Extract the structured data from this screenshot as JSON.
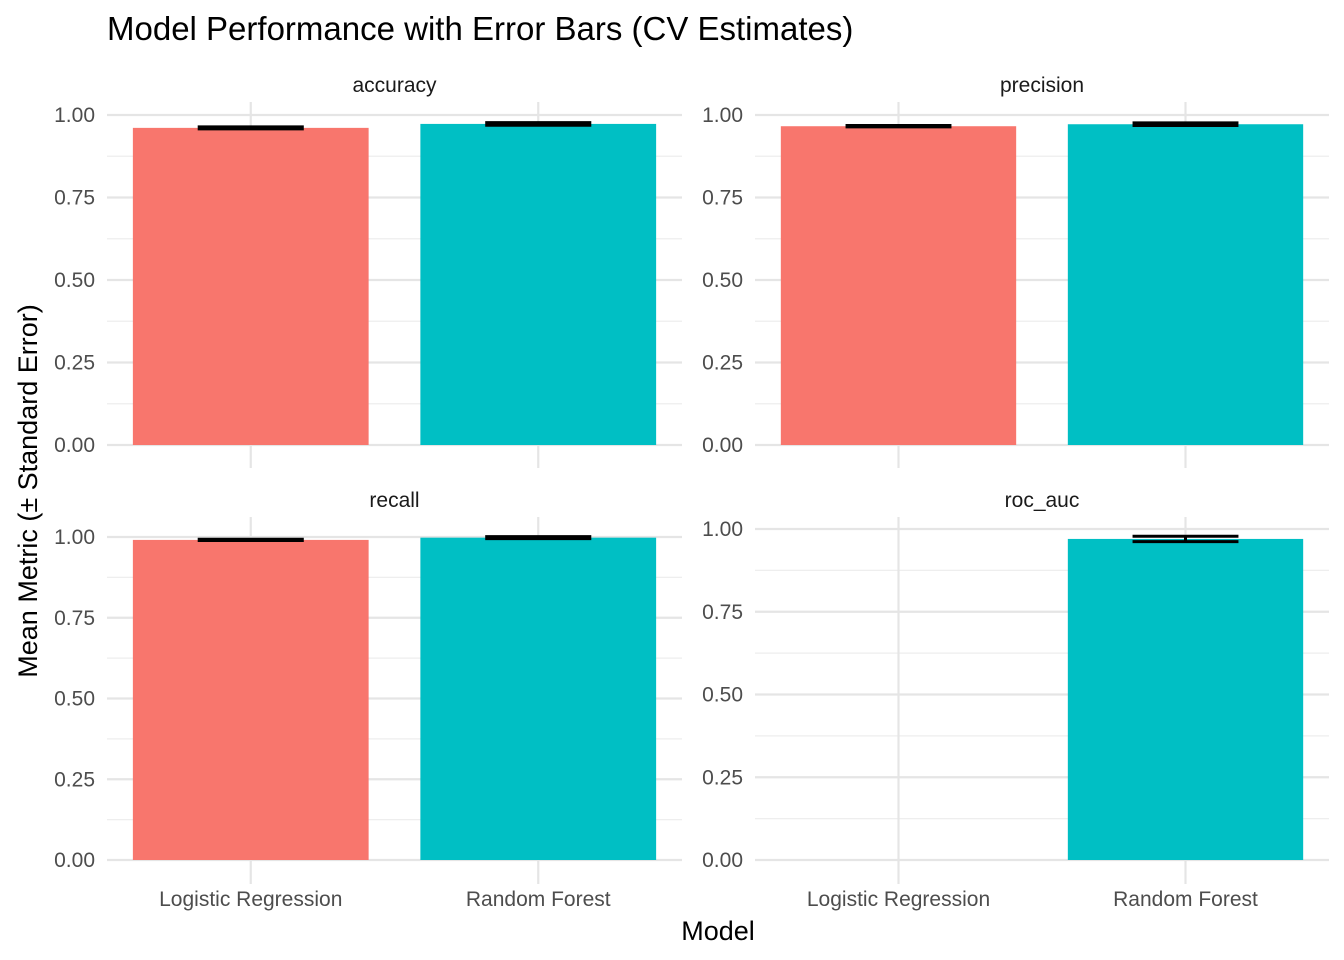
{
  "chart_data": {
    "type": "bar",
    "title": "Model Performance with Error Bars (CV Estimates)",
    "xlabel": "Model",
    "ylabel": "Mean Metric (± Standard Error)",
    "categories": [
      "Logistic Regression",
      "Random Forest"
    ],
    "colors": {
      "Logistic Regression": "#F8766D",
      "Random Forest": "#00BFC4"
    },
    "ylim": [
      0,
      1.04
    ],
    "y_ticks": [
      "0.00",
      "0.25",
      "0.50",
      "0.75",
      "1.00"
    ],
    "grid": true,
    "legend": "none",
    "panels": [
      {
        "name": "accuracy",
        "ylim": [
          0,
          1.0
        ],
        "y_ticks": [
          "0.00",
          "0.25",
          "0.50",
          "0.75",
          "1.00"
        ],
        "bars": [
          {
            "category": "Logistic Regression",
            "value": 0.961,
            "se": 0.003
          },
          {
            "category": "Random Forest",
            "value": 0.973,
            "se": 0.004
          }
        ]
      },
      {
        "name": "precision",
        "ylim": [
          0,
          1.0
        ],
        "y_ticks": [
          "0.00",
          "0.25",
          "0.50",
          "0.75",
          "1.00"
        ],
        "bars": [
          {
            "category": "Logistic Regression",
            "value": 0.966,
            "se": 0.002
          },
          {
            "category": "Random Forest",
            "value": 0.972,
            "se": 0.004
          }
        ]
      },
      {
        "name": "recall",
        "ylim": [
          0,
          1.0
        ],
        "y_ticks": [
          "0.00",
          "0.25",
          "0.50",
          "0.75",
          "1.00"
        ],
        "bars": [
          {
            "category": "Logistic Regression",
            "value": 0.991,
            "se": 0.002
          },
          {
            "category": "Random Forest",
            "value": 0.998,
            "se": 0.003
          }
        ]
      },
      {
        "name": "roc_auc",
        "ylim": [
          0,
          1.0
        ],
        "y_ticks": [
          "0.00",
          "0.25",
          "0.50",
          "0.75",
          "1.00"
        ],
        "bars": [
          {
            "category": "Random Forest",
            "value": 0.97,
            "se": 0.008
          }
        ]
      }
    ]
  }
}
